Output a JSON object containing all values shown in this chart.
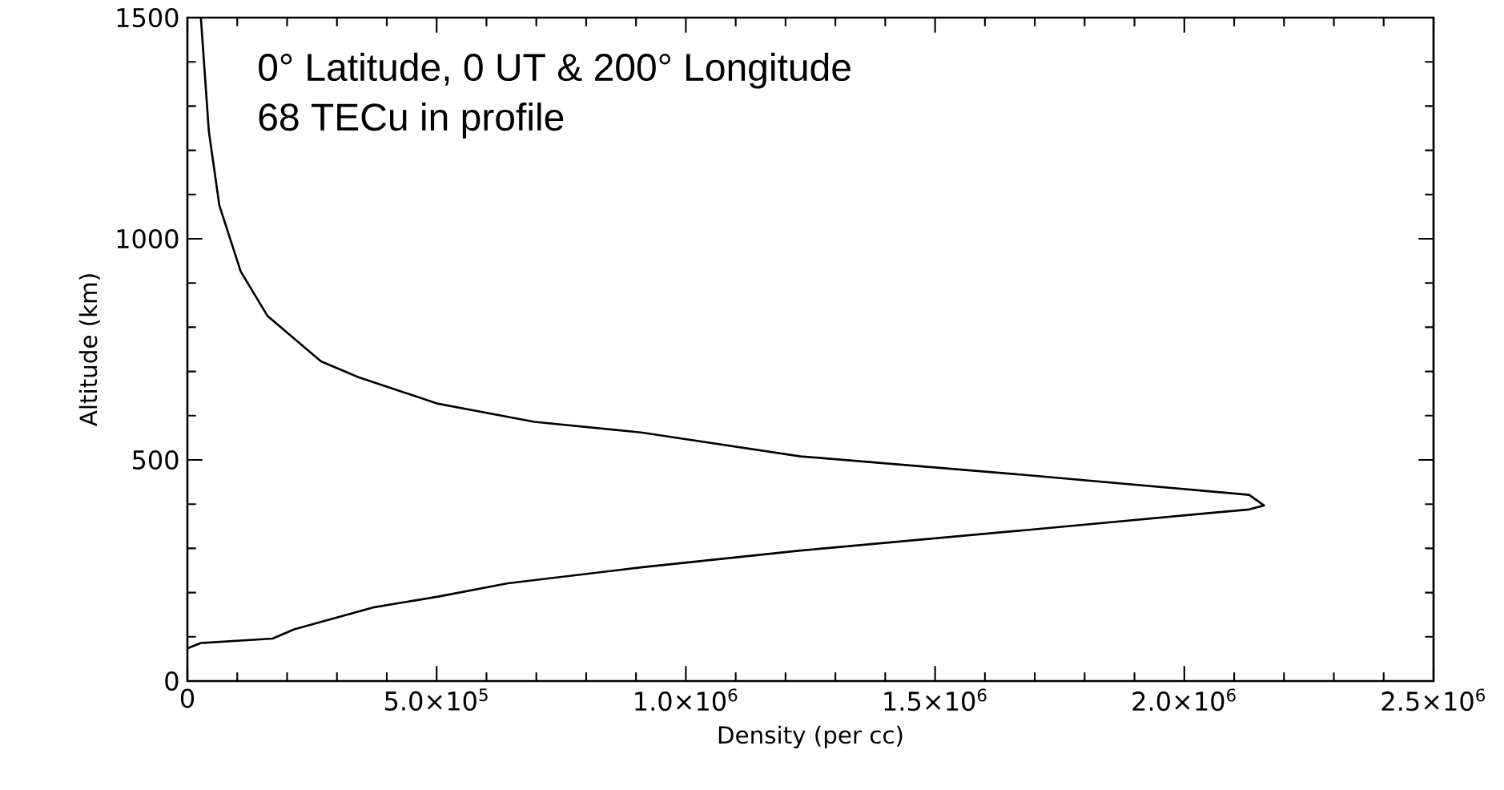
{
  "chart_data": {
    "type": "line",
    "xlabel": "Density (per cc)",
    "ylabel": "Altitude (km)",
    "annotations": [
      "0° Latitude, 0 UT & 200° Longitude",
      "68 TECu in profile"
    ],
    "xlim": [
      0,
      2500000
    ],
    "ylim": [
      0,
      1500
    ],
    "xticks": [
      0,
      {
        "value": 500000,
        "label": "5.0×10$^{5}$"
      },
      {
        "value": 1000000,
        "label": "1.0×10$^{6}$"
      },
      {
        "value": 1500000,
        "label": "1.5×10$^{6}$"
      },
      {
        "value": 2000000,
        "label": "2.0×10$^{6}$"
      },
      {
        "value": 2500000,
        "label": "2.5×10$^{6}$"
      }
    ],
    "yticks": [
      0,
      500,
      1000,
      1500
    ],
    "marker": "none",
    "line_style": "solid",
    "series": [
      {
        "color": "#000000",
        "x": [
          0,
          27000,
          171000,
          214000,
          375000,
          503000,
          643000,
          910000,
          1230000,
          1680000,
          2130000,
          2160000,
          2130000,
          1680000,
          1230000,
          910000,
          696000,
          503000,
          343000,
          268000,
          161000,
          107000,
          64000,
          43000,
          27000
        ],
        "values": [
          74,
          86,
          96,
          117,
          167,
          191,
          221,
          257,
          295,
          341,
          388,
          397,
          421,
          466,
          508,
          562,
          586,
          627,
          687,
          723,
          825,
          926,
          1076,
          1243,
          1500
        ]
      }
    ]
  }
}
